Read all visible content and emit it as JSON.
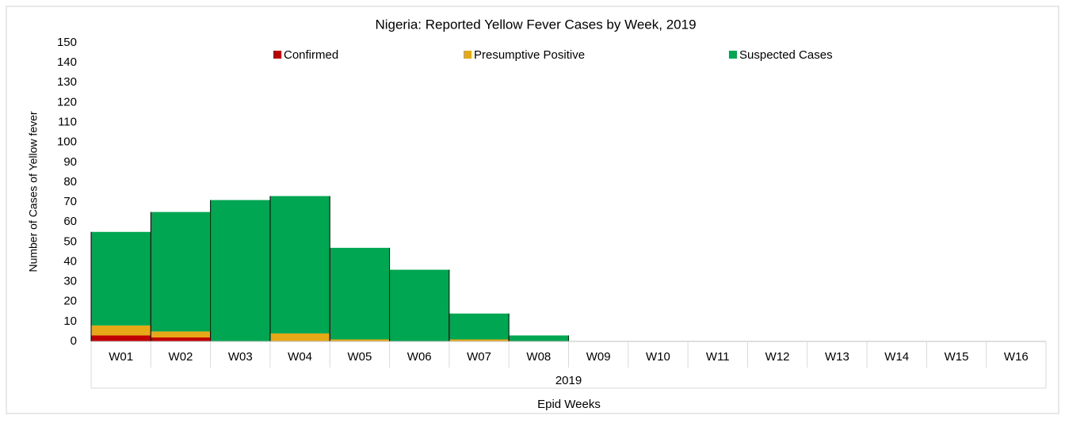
{
  "chart_data": {
    "type": "bar",
    "stacked": true,
    "title": "Nigeria: Reported Yellow Fever Cases by Week, 2019",
    "y_label": "Number of Cases of Yellow fever",
    "x_label": "Epid Weeks",
    "category_group": "2019",
    "categories": [
      "W01",
      "W02",
      "W03",
      "W04",
      "W05",
      "W06",
      "W07",
      "W08",
      "W09",
      "W10",
      "W11",
      "W12",
      "W13",
      "W14",
      "W15",
      "W16"
    ],
    "series": [
      {
        "name": "Confirmed",
        "color": "#c00000",
        "values": [
          3,
          2,
          0,
          0,
          0,
          0,
          0,
          0,
          0,
          0,
          0,
          0,
          0,
          0,
          0,
          0
        ]
      },
      {
        "name": "Presumptive Positive",
        "color": "#e6a817",
        "values": [
          5,
          3,
          0,
          4,
          1,
          0,
          1,
          0,
          0,
          0,
          0,
          0,
          0,
          0,
          0,
          0
        ]
      },
      {
        "name": "Suspected Cases",
        "color": "#00a651",
        "values": [
          47,
          60,
          71,
          69,
          46,
          36,
          13,
          3,
          0,
          0,
          0,
          0,
          0,
          0,
          0,
          0
        ]
      }
    ],
    "ylim": [
      0,
      150
    ],
    "yticks": [
      0,
      10,
      20,
      30,
      40,
      50,
      60,
      70,
      80,
      90,
      100,
      110,
      120,
      130,
      140,
      150
    ],
    "grid": false,
    "legend": "top"
  }
}
